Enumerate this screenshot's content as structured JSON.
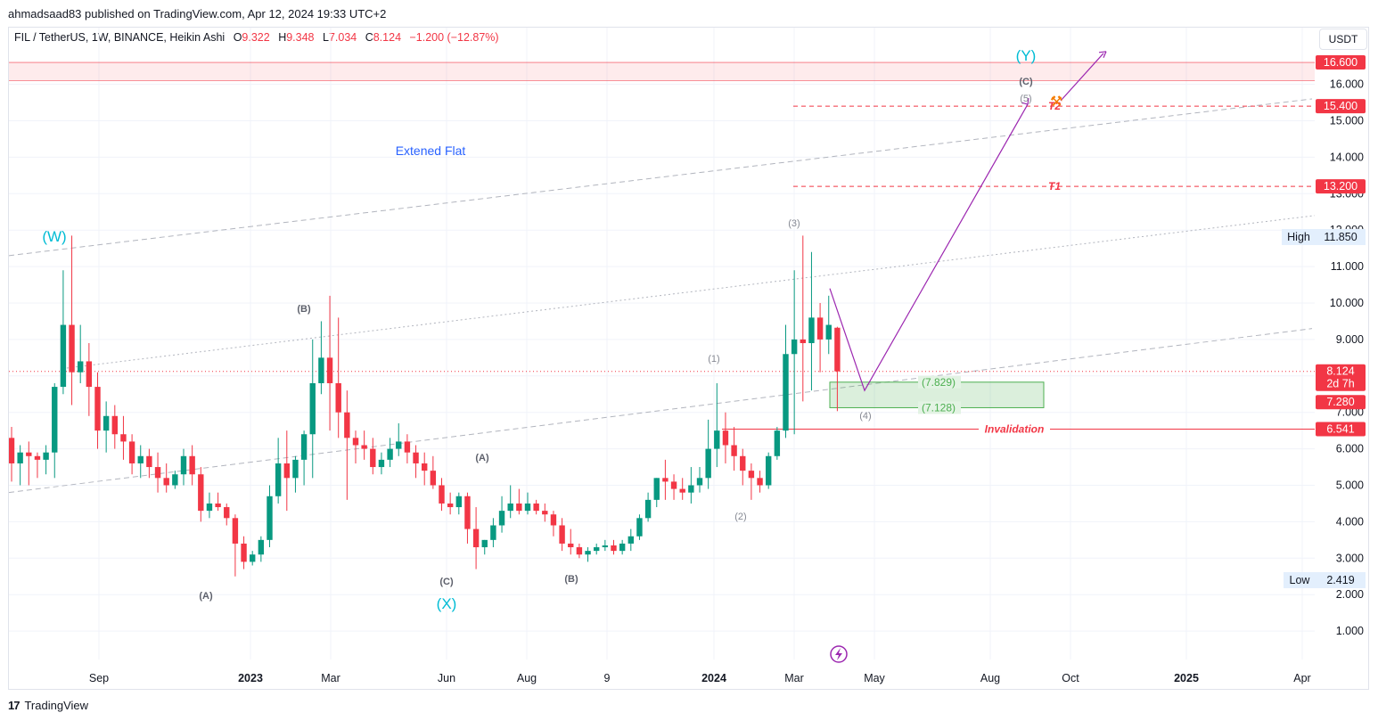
{
  "publisher_line": "ahmadsaad83 published on TradingView.com, Apr 12, 2024 19:33 UTC+2",
  "legend": {
    "symbol": "FIL / TetherUS, 1W, BINANCE, Heikin Ashi",
    "o_label": "O",
    "o_value": "9.322",
    "h_label": "H",
    "h_value": "9.348",
    "l_label": "L",
    "l_value": "7.034",
    "c_label": "C",
    "c_value": "8.124",
    "change": "−1.200 (−12.87%)"
  },
  "currency_button": "USDT",
  "brand": {
    "logo": "17",
    "name": "TradingView"
  },
  "colors": {
    "up": "#089981",
    "down": "#f23645",
    "wave_major": "#00bcd4",
    "path": "#9c27b0",
    "target": "#f23645",
    "zone": "#4caf50",
    "text_blue": "#2962ff"
  },
  "chart_data": {
    "type": "candlestick",
    "ylim": [
      0,
      17.3
    ],
    "yticks": [
      "1.000",
      "2.000",
      "3.000",
      "4.000",
      "5.000",
      "6.000",
      "7.000",
      "8.000",
      "9.000",
      "10.000",
      "11.000",
      "12.000",
      "13.000",
      "14.000",
      "15.000",
      "16.000"
    ],
    "xticks": [
      "Sep",
      "2023",
      "Mar",
      "Jun",
      "Aug",
      "9",
      "2024",
      "Mar",
      "May",
      "Aug",
      "Oct",
      "2025",
      "Apr"
    ],
    "price_badges": [
      {
        "label": "16.600",
        "value": 16.6,
        "kind": "red"
      },
      {
        "label": "15.400",
        "value": 15.4,
        "kind": "red"
      },
      {
        "label": "13.200",
        "value": 13.2,
        "kind": "red"
      },
      {
        "label": "8.124",
        "sub": "2d 7h",
        "value": 8.124,
        "kind": "red"
      },
      {
        "label": "7.280",
        "value": 7.28,
        "kind": "red"
      },
      {
        "label": "6.541",
        "value": 6.541,
        "kind": "red"
      }
    ],
    "high": {
      "label": "High",
      "value": "11.850"
    },
    "low": {
      "label": "Low",
      "value": "2.419"
    },
    "last_price": 8.124,
    "resistance_zone": [
      16.1,
      16.6
    ],
    "targets": [
      {
        "label": "T1",
        "value": 13.2
      },
      {
        "label": "T2",
        "value": 15.4
      }
    ],
    "invalidation": {
      "label": "Invalidation",
      "value": 6.541
    },
    "support_zone": {
      "top": 7.829,
      "bottom": 7.128,
      "top_label": "(7.829)",
      "bottom_label": "(7.128)"
    },
    "pattern_label": "Extened Flat",
    "wave_labels": [
      {
        "text": "(W)",
        "kind": "major"
      },
      {
        "text": "(X)",
        "kind": "major"
      },
      {
        "text": "(Y)",
        "kind": "major"
      },
      {
        "text": "(A)",
        "kind": "minor"
      },
      {
        "text": "(B)",
        "kind": "minor"
      },
      {
        "text": "(C)",
        "kind": "minor"
      },
      {
        "text": "(A)",
        "kind": "minor"
      },
      {
        "text": "(B)",
        "kind": "minor"
      },
      {
        "text": "(C)",
        "kind": "minor"
      },
      {
        "text": "(1)",
        "kind": "sub"
      },
      {
        "text": "(2)",
        "kind": "sub"
      },
      {
        "text": "(3)",
        "kind": "sub"
      },
      {
        "text": "(4)",
        "kind": "sub"
      },
      {
        "text": "(5)",
        "kind": "sub"
      }
    ],
    "candles": [
      [
        6.3,
        6.6,
        5.1,
        5.6
      ],
      [
        5.6,
        6.1,
        5.0,
        5.9
      ],
      [
        5.9,
        6.2,
        5.0,
        5.8
      ],
      [
        5.8,
        5.9,
        5.2,
        5.7
      ],
      [
        5.7,
        6.1,
        5.3,
        5.9
      ],
      [
        5.9,
        7.8,
        5.2,
        7.7
      ],
      [
        7.7,
        10.9,
        7.5,
        9.4
      ],
      [
        9.4,
        11.85,
        7.2,
        8.1
      ],
      [
        8.1,
        9.4,
        7.8,
        8.4
      ],
      [
        8.4,
        8.9,
        6.9,
        7.7
      ],
      [
        7.7,
        8.1,
        6.0,
        6.5
      ],
      [
        6.5,
        7.3,
        5.9,
        6.9
      ],
      [
        6.9,
        7.2,
        6.0,
        6.4
      ],
      [
        6.4,
        6.9,
        5.7,
        6.2
      ],
      [
        6.2,
        6.4,
        5.3,
        5.6
      ],
      [
        5.6,
        6.1,
        5.2,
        5.8
      ],
      [
        5.8,
        6.0,
        5.2,
        5.5
      ],
      [
        5.5,
        5.9,
        4.8,
        5.2
      ],
      [
        5.2,
        5.6,
        4.8,
        5.0
      ],
      [
        5.0,
        5.4,
        4.9,
        5.3
      ],
      [
        5.3,
        6.0,
        5.0,
        5.8
      ],
      [
        5.8,
        6.1,
        5.0,
        5.3
      ],
      [
        5.3,
        5.5,
        4.0,
        4.3
      ],
      [
        4.3,
        4.8,
        4.1,
        4.5
      ],
      [
        4.5,
        4.8,
        4.3,
        4.4
      ],
      [
        4.4,
        4.5,
        3.9,
        4.1
      ],
      [
        4.1,
        4.2,
        2.5,
        3.4
      ],
      [
        3.4,
        3.6,
        2.7,
        2.9
      ],
      [
        2.9,
        3.2,
        2.8,
        3.1
      ],
      [
        3.1,
        3.6,
        2.9,
        3.5
      ],
      [
        3.5,
        5.0,
        3.3,
        4.7
      ],
      [
        4.7,
        6.3,
        4.5,
        5.6
      ],
      [
        5.6,
        6.5,
        4.3,
        5.2
      ],
      [
        5.2,
        5.8,
        4.8,
        5.7
      ],
      [
        5.7,
        6.5,
        5.0,
        6.4
      ],
      [
        6.4,
        9.0,
        5.2,
        7.8
      ],
      [
        7.8,
        9.5,
        7.5,
        8.5
      ],
      [
        8.5,
        10.2,
        6.5,
        7.8
      ],
      [
        7.8,
        9.6,
        6.3,
        7.0
      ],
      [
        7.0,
        7.6,
        4.6,
        6.3
      ],
      [
        6.3,
        6.5,
        5.6,
        6.1
      ],
      [
        6.1,
        6.5,
        5.7,
        6.0
      ],
      [
        6.0,
        6.3,
        5.3,
        5.5
      ],
      [
        5.5,
        5.9,
        5.3,
        5.7
      ],
      [
        5.7,
        6.3,
        5.5,
        6.0
      ],
      [
        6.0,
        6.7,
        5.8,
        6.2
      ],
      [
        6.2,
        6.4,
        5.6,
        5.9
      ],
      [
        5.9,
        6.1,
        5.2,
        5.6
      ],
      [
        5.6,
        5.9,
        5.0,
        5.4
      ],
      [
        5.4,
        5.8,
        4.9,
        5.0
      ],
      [
        5.0,
        5.2,
        4.3,
        4.5
      ],
      [
        4.5,
        4.8,
        4.2,
        4.4
      ],
      [
        4.4,
        4.8,
        4.2,
        4.7
      ],
      [
        4.7,
        4.8,
        3.4,
        3.8
      ],
      [
        3.8,
        4.4,
        2.7,
        3.3
      ],
      [
        3.3,
        3.5,
        3.1,
        3.5
      ],
      [
        3.5,
        4.1,
        3.3,
        3.9
      ],
      [
        3.9,
        4.7,
        3.7,
        4.3
      ],
      [
        4.3,
        5.0,
        4.1,
        4.5
      ],
      [
        4.5,
        4.9,
        4.2,
        4.3
      ],
      [
        4.3,
        4.8,
        4.2,
        4.5
      ],
      [
        4.5,
        4.6,
        4.2,
        4.3
      ],
      [
        4.3,
        4.5,
        4.0,
        4.2
      ],
      [
        4.2,
        4.3,
        3.6,
        3.9
      ],
      [
        3.9,
        4.1,
        3.2,
        3.4
      ],
      [
        3.4,
        3.8,
        3.1,
        3.3
      ],
      [
        3.3,
        3.4,
        3.0,
        3.1
      ],
      [
        3.1,
        3.3,
        2.9,
        3.2
      ],
      [
        3.2,
        3.4,
        3.1,
        3.3
      ],
      [
        3.3,
        3.5,
        3.2,
        3.35
      ],
      [
        3.35,
        3.5,
        3.1,
        3.2
      ],
      [
        3.2,
        3.5,
        3.1,
        3.4
      ],
      [
        3.4,
        3.8,
        3.2,
        3.6
      ],
      [
        3.6,
        4.2,
        3.5,
        4.1
      ],
      [
        4.1,
        4.8,
        4.0,
        4.6
      ],
      [
        4.6,
        5.2,
        4.4,
        5.2
      ],
      [
        5.2,
        5.7,
        4.6,
        5.1
      ],
      [
        5.1,
        5.3,
        4.6,
        4.9
      ],
      [
        4.9,
        5.2,
        4.6,
        4.8
      ],
      [
        4.8,
        5.5,
        4.5,
        5.0
      ],
      [
        5.0,
        5.5,
        4.8,
        5.2
      ],
      [
        5.2,
        6.8,
        4.9,
        6.0
      ],
      [
        6.0,
        7.8,
        5.5,
        6.5
      ],
      [
        6.5,
        7.0,
        5.6,
        6.1
      ],
      [
        6.1,
        6.6,
        5.4,
        5.8
      ],
      [
        5.8,
        6.0,
        5.0,
        5.4
      ],
      [
        5.4,
        5.6,
        4.6,
        5.2
      ],
      [
        5.2,
        5.4,
        4.8,
        5.0
      ],
      [
        5.0,
        5.9,
        4.9,
        5.8
      ],
      [
        5.8,
        6.6,
        5.7,
        6.5
      ],
      [
        6.5,
        9.4,
        6.3,
        8.6
      ],
      [
        8.6,
        10.9,
        6.4,
        9.0
      ],
      [
        9.0,
        11.85,
        7.3,
        8.9
      ],
      [
        8.9,
        11.4,
        7.6,
        9.6
      ],
      [
        9.6,
        10.0,
        8.1,
        9.0
      ],
      [
        9.0,
        10.2,
        8.6,
        9.4
      ],
      [
        9.322,
        9.348,
        7.034,
        8.124
      ]
    ]
  }
}
